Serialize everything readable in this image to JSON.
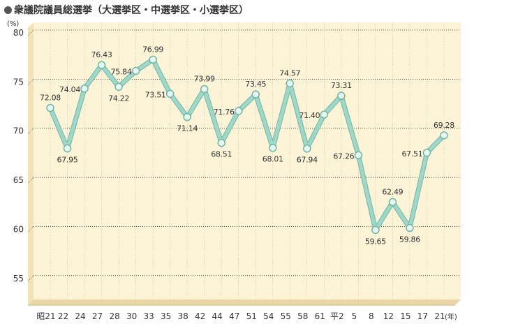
{
  "title": "衆議院議員総選挙（大選挙区・中選挙区・小選挙区）",
  "chart_data": {
    "type": "line",
    "title": "衆議院議員総選挙（大選挙区・中選挙区・小選挙区）",
    "ylabel": "(%)",
    "xlabel": "(年)",
    "ylim": [
      52,
      80
    ],
    "yticks": [
      55,
      60,
      65,
      70,
      75,
      80
    ],
    "categories": [
      "昭21",
      "22",
      "24",
      "27",
      "28",
      "30",
      "33",
      "35",
      "38",
      "42",
      "44",
      "47",
      "51",
      "54",
      "55",
      "58",
      "61",
      "平2",
      "5",
      "8",
      "12",
      "15",
      "17",
      "21"
    ],
    "values": [
      72.08,
      67.95,
      74.04,
      76.43,
      74.22,
      75.84,
      76.99,
      73.51,
      71.14,
      73.99,
      68.51,
      71.76,
      73.45,
      68.01,
      74.57,
      67.94,
      71.4,
      73.31,
      67.26,
      59.65,
      62.49,
      59.86,
      67.51,
      69.28
    ],
    "data_labels": [
      "72.08",
      "67.95",
      "74.04",
      "76.43",
      "74.22",
      "75.84",
      "76.99",
      "73.51",
      "71.14",
      "73.99",
      "68.51",
      "71.76",
      "73.45",
      "68.01",
      "74.57",
      "67.94",
      "71.40",
      "73.31",
      "67.26",
      "59.65",
      "62.49",
      "59.86",
      "67.51",
      "69.28"
    ],
    "grid": true,
    "colors": {
      "background": "#fdf3d6",
      "line": "#9fd8c9",
      "line_edge": "#6fb8a6",
      "marker": "#e6f6f1",
      "grid": "#222222",
      "depth": "#e9d6a4"
    }
  }
}
